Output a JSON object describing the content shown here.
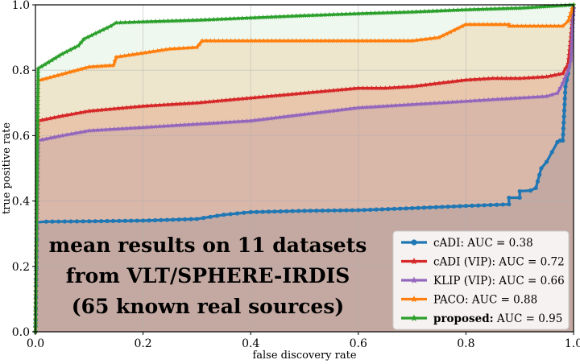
{
  "chart_data": {
    "type": "line",
    "xlabel": "false discovery rate",
    "ylabel": "true positive rate",
    "xlim": [
      0,
      1
    ],
    "ylim": [
      0,
      1
    ],
    "xticks": [
      "0.0",
      "0.2",
      "0.4",
      "0.6",
      "0.8",
      "1.0"
    ],
    "yticks": [
      "0.0",
      "0.2",
      "0.4",
      "0.6",
      "0.8",
      "1.0"
    ],
    "grid": true,
    "legend_position": "bottom-right",
    "annotation": [
      "mean results on 11 datasets",
      "from VLT/SPHERE-IRDIS",
      "(65 known real sources)"
    ],
    "series": [
      {
        "name_bold": "",
        "name": "cADI: AUC = 0.38",
        "color": "#1f77b4",
        "marker": "circle",
        "fill_alpha": 0.18,
        "x": [
          0,
          0.003,
          0.02,
          0.1,
          0.2,
          0.3,
          0.35,
          0.4,
          0.5,
          0.6,
          0.7,
          0.8,
          0.88,
          0.88,
          0.9,
          0.9,
          0.92,
          0.93,
          0.94,
          0.95,
          0.96,
          0.97,
          0.975,
          0.98,
          0.985,
          0.99,
          0.993,
          0.997,
          1.0
        ],
        "y": [
          0,
          0.335,
          0.337,
          0.338,
          0.34,
          0.345,
          0.358,
          0.366,
          0.37,
          0.372,
          0.378,
          0.385,
          0.39,
          0.41,
          0.41,
          0.43,
          0.432,
          0.44,
          0.5,
          0.52,
          0.55,
          0.58,
          0.585,
          0.585,
          0.75,
          0.79,
          0.83,
          0.93,
          0.99
        ]
      },
      {
        "name_bold": "",
        "name": "cADI (VIP): AUC = 0.72",
        "color": "#d62728",
        "marker": "star",
        "fill_alpha": 0.18,
        "x": [
          0,
          0.005,
          0.05,
          0.1,
          0.2,
          0.3,
          0.4,
          0.5,
          0.6,
          0.65,
          0.7,
          0.75,
          0.8,
          0.85,
          0.9,
          0.95,
          0.98,
          0.99,
          0.995,
          1.0
        ],
        "y": [
          0,
          0.645,
          0.66,
          0.675,
          0.69,
          0.7,
          0.715,
          0.73,
          0.745,
          0.745,
          0.75,
          0.76,
          0.77,
          0.775,
          0.775,
          0.78,
          0.79,
          0.82,
          0.9,
          0.99
        ]
      },
      {
        "name_bold": "",
        "name": "KLIP (VIP): AUC = 0.66",
        "color": "#9467bd",
        "marker": "star",
        "fill_alpha": 0.18,
        "x": [
          0,
          0.005,
          0.05,
          0.1,
          0.2,
          0.3,
          0.4,
          0.5,
          0.6,
          0.7,
          0.75,
          0.8,
          0.85,
          0.9,
          0.95,
          0.97,
          0.98,
          0.99,
          0.995,
          1.0
        ],
        "y": [
          0,
          0.585,
          0.6,
          0.615,
          0.625,
          0.635,
          0.645,
          0.665,
          0.685,
          0.695,
          0.7,
          0.705,
          0.71,
          0.715,
          0.72,
          0.73,
          0.76,
          0.8,
          0.83,
          0.99
        ]
      },
      {
        "name_bold": "",
        "name": "PACO: AUC = 0.88",
        "color": "#ff7f0e",
        "marker": "star",
        "fill_alpha": 0.15,
        "x": [
          0,
          0.005,
          0.1,
          0.145,
          0.15,
          0.25,
          0.3,
          0.31,
          0.5,
          0.6,
          0.7,
          0.75,
          0.8,
          0.88,
          0.88,
          0.95,
          0.98,
          0.99,
          1.0
        ],
        "y": [
          0,
          0.768,
          0.81,
          0.815,
          0.84,
          0.865,
          0.87,
          0.89,
          0.89,
          0.89,
          0.89,
          0.9,
          0.94,
          0.94,
          0.935,
          0.935,
          0.935,
          0.95,
          1.0
        ]
      },
      {
        "name_bold": "proposed:",
        "name": " AUC = 0.95",
        "color": "#2ca02c",
        "marker": "star",
        "fill_alpha": 0.08,
        "x": [
          0,
          0.005,
          0.05,
          0.08,
          0.09,
          0.14,
          0.15,
          0.2,
          0.3,
          0.4,
          0.5,
          0.6,
          0.7,
          0.8,
          0.9,
          1.0
        ],
        "y": [
          0,
          0.805,
          0.85,
          0.875,
          0.895,
          0.935,
          0.945,
          0.948,
          0.953,
          0.96,
          0.967,
          0.973,
          0.978,
          0.985,
          0.99,
          1.0
        ]
      }
    ]
  }
}
